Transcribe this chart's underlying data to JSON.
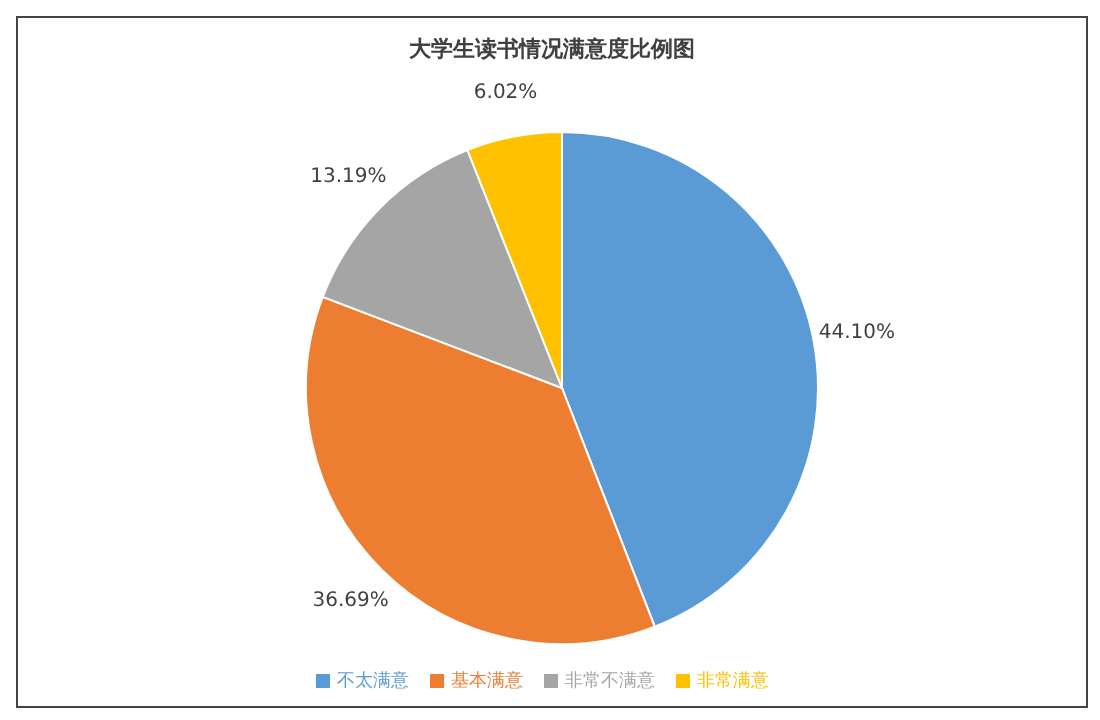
{
  "chart_data": {
    "type": "pie",
    "title": "大学生读书情况满意度比例图",
    "categories": [
      "不太满意",
      "基本满意",
      "非常不满意",
      "非常满意"
    ],
    "values": [
      44.1,
      36.69,
      13.19,
      6.02
    ],
    "colors": [
      "#5b9bd5",
      "#ed7d31",
      "#a5a5a5",
      "#ffc000"
    ],
    "value_labels": [
      "44.10%",
      "36.69%",
      "13.19%",
      "6.02%"
    ],
    "legend": "bottom"
  }
}
